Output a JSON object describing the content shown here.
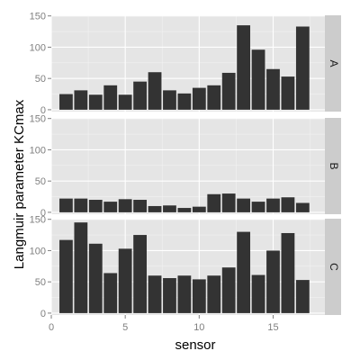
{
  "chart_data": {
    "type": "bar",
    "xlabel": "sensor",
    "ylabel": "Langmuir parameter KCmax",
    "x": [
      1,
      2,
      3,
      4,
      5,
      6,
      7,
      8,
      9,
      10,
      11,
      12,
      13,
      14,
      15,
      16,
      17
    ],
    "xlim": [
      0,
      18.5
    ],
    "xticks": [
      0,
      5,
      10,
      15
    ],
    "ylim": [
      -3,
      151
    ],
    "yticks": [
      0,
      50,
      100,
      150
    ],
    "grid": true,
    "legend": "none",
    "colors": {
      "panel_background": "#e5e5e5",
      "grid_major": "#ffffff",
      "grid_minor": "#f2f2f2",
      "bar_fill": "#333333",
      "strip_background": "#cccccc",
      "tick_color": "#7f7f7f"
    },
    "facets": [
      {
        "label": "A",
        "values": [
          25,
          31,
          24,
          39,
          24,
          45,
          60,
          31,
          26,
          35,
          39,
          59,
          135,
          96,
          65,
          53,
          133
        ]
      },
      {
        "label": "B",
        "values": [
          22,
          22,
          20,
          17,
          21,
          20,
          10,
          11,
          7,
          9,
          29,
          30,
          22,
          17,
          22,
          24,
          15
        ]
      },
      {
        "label": "C",
        "values": [
          117,
          145,
          111,
          64,
          103,
          125,
          60,
          56,
          60,
          54,
          60,
          73,
          130,
          61,
          100,
          128,
          53
        ]
      }
    ]
  }
}
